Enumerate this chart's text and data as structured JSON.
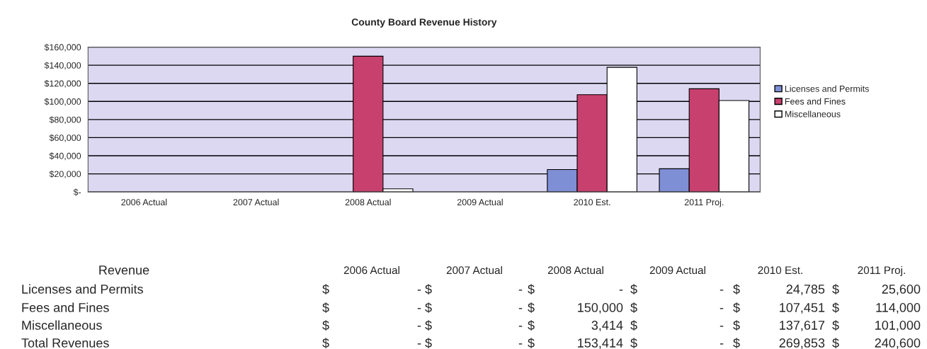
{
  "chart_data": [
    {
      "type": "bar",
      "title": "County Board Revenue History",
      "categories": [
        "2006 Actual",
        "2007 Actual",
        "2008 Actual",
        "2009 Actual",
        "2010 Est.",
        "2011 Proj."
      ],
      "series": [
        {
          "name": "Licenses and Permits",
          "color": "#7f8fd6",
          "values": [
            0,
            0,
            0,
            0,
            24785,
            25600
          ]
        },
        {
          "name": "Fees and Fines",
          "color": "#c8406e",
          "values": [
            0,
            0,
            150000,
            0,
            107451,
            114000
          ]
        },
        {
          "name": "Miscellaneous",
          "color": "#ffffff",
          "values": [
            0,
            0,
            3414,
            0,
            137617,
            101000
          ]
        }
      ],
      "ylim": [
        0,
        160000
      ],
      "yticks": [
        {
          "value": 0,
          "label": "$-"
        },
        {
          "value": 20000,
          "label": "$20,000"
        },
        {
          "value": 40000,
          "label": "$40,000"
        },
        {
          "value": 60000,
          "label": "$60,000"
        },
        {
          "value": 80000,
          "label": "$80,000"
        },
        {
          "value": 100000,
          "label": "$100,000"
        },
        {
          "value": 120000,
          "label": "$120,000"
        },
        {
          "value": 140000,
          "label": "$140,000"
        },
        {
          "value": 160000,
          "label": "$160,000"
        }
      ],
      "grid": "y",
      "legend": "right"
    },
    {
      "type": "other",
      "title": "Revenue",
      "categories": [
        "2006 Actual",
        "2007 Actual",
        "2008 Actual",
        "2009 Actual",
        "2010 Est.",
        "2011 Proj."
      ],
      "y_categories": [
        "Licenses and Permits",
        "Fees and Fines",
        "Miscellaneous",
        "Total Revenues"
      ],
      "cell_labels": [
        [
          "$ -",
          "$ -",
          "$ -",
          "$ -",
          "$ 24,785",
          "$ 25,600"
        ],
        [
          "$ -",
          "$ -",
          "$ 150,000",
          "$ -",
          "$ 107,451",
          "$ 114,000"
        ],
        [
          "$ -",
          "$ -",
          "$ 3,414",
          "$ -",
          "$ 137,617",
          "$ 101,000"
        ],
        [
          "$ -",
          "$ -",
          "$ 153,414",
          "$ -",
          "$ 269,853",
          "$ 240,600"
        ]
      ]
    }
  ]
}
